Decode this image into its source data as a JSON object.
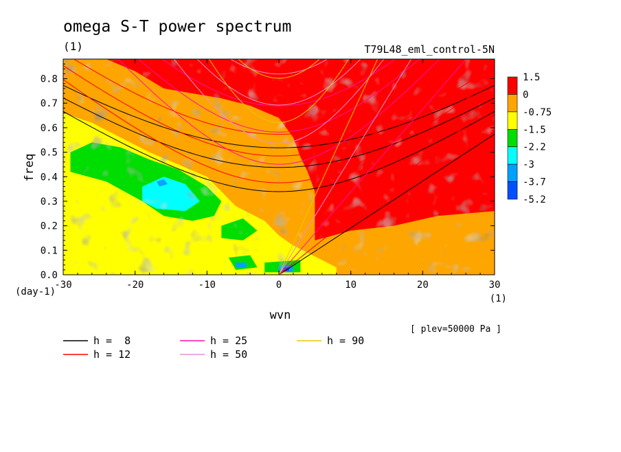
{
  "chart_data": {
    "type": "heatmap",
    "title": "omega S-T power spectrum",
    "subtitle": "(1)",
    "experiment": "T79L48_eml_control-5N",
    "xlabel": "wvn",
    "ylabel": "freq",
    "x_units": "(1)",
    "y_units": "(day-1)",
    "note": "[ plev=50000 Pa ]",
    "xlim": [
      -30,
      30
    ],
    "ylim": [
      0,
      0.88
    ],
    "x_ticks": [
      -30,
      -20,
      -10,
      0,
      10,
      20,
      30
    ],
    "y_ticks": [
      0.0,
      0.1,
      0.2,
      0.3,
      0.4,
      0.5,
      0.6,
      0.7,
      0.8
    ],
    "x_tick_labels": [
      "-30",
      "-20",
      "-10",
      "0",
      "10",
      "20",
      "30"
    ],
    "y_tick_labels": [
      "0.0",
      "0.1",
      "0.2",
      "0.3",
      "0.4",
      "0.5",
      "0.6",
      "0.7",
      "0.8"
    ],
    "colorbar": {
      "labels": [
        "1.5",
        "0",
        "-0.75",
        "-1.5",
        "-2.2",
        "-3",
        "-3.7",
        "-5.2"
      ],
      "colors": [
        "#ff0000",
        "#ffa500",
        "#ffff00",
        "#00dd00",
        "#00ffff",
        "#00a0ff",
        "#0050ff"
      ]
    },
    "contour_levels": [
      1.5,
      0,
      -0.75,
      -1.5,
      -2.2,
      -3,
      -3.7,
      -5.2
    ],
    "dispersion_curves": [
      {
        "h": 8,
        "label": "h =  8",
        "color": "#000000"
      },
      {
        "h": 12,
        "label": "h = 12",
        "color": "#ff0000"
      },
      {
        "h": 25,
        "label": "h = 25",
        "color": "#ff10a0"
      },
      {
        "h": 50,
        "label": "h = 50",
        "color": "#e890d0"
      },
      {
        "h": 90,
        "label": "h = 90",
        "color": "#e8c800"
      }
    ]
  }
}
